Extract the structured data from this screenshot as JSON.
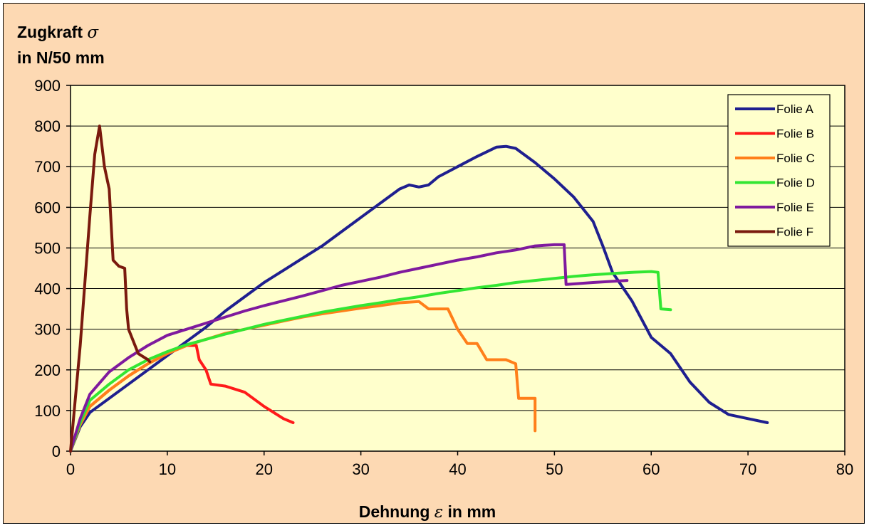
{
  "chart_data": {
    "type": "line",
    "ylabel": {
      "line1": "Zugkraft",
      "symbol": "σ",
      "line2": "in N/50 mm"
    },
    "xlabel": {
      "pre": "Dehnung",
      "symbol": "ε",
      "post": "in mm"
    },
    "xlim": [
      0,
      80
    ],
    "ylim": [
      0,
      900
    ],
    "xticks": [
      0,
      10,
      20,
      30,
      40,
      50,
      60,
      70,
      80
    ],
    "yticks": [
      0,
      100,
      200,
      300,
      400,
      500,
      600,
      700,
      800,
      900
    ],
    "grid": "horizontal",
    "legend_position": "top-right",
    "plot_background": "#ffffcc",
    "series": [
      {
        "name": "Folie A",
        "color": "#1f1f8f",
        "points": [
          [
            0,
            0
          ],
          [
            1,
            60
          ],
          [
            2,
            95
          ],
          [
            4,
            130
          ],
          [
            6,
            165
          ],
          [
            8,
            200
          ],
          [
            10,
            235
          ],
          [
            12,
            270
          ],
          [
            14,
            305
          ],
          [
            16,
            345
          ],
          [
            18,
            380
          ],
          [
            20,
            415
          ],
          [
            22,
            445
          ],
          [
            24,
            475
          ],
          [
            26,
            505
          ],
          [
            28,
            540
          ],
          [
            30,
            575
          ],
          [
            32,
            610
          ],
          [
            34,
            645
          ],
          [
            35,
            655
          ],
          [
            36,
            650
          ],
          [
            37,
            655
          ],
          [
            38,
            675
          ],
          [
            40,
            700
          ],
          [
            42,
            725
          ],
          [
            44,
            748
          ],
          [
            45,
            750
          ],
          [
            46,
            745
          ],
          [
            48,
            710
          ],
          [
            50,
            670
          ],
          [
            52,
            625
          ],
          [
            54,
            565
          ],
          [
            55,
            505
          ],
          [
            56,
            440
          ],
          [
            58,
            370
          ],
          [
            60,
            280
          ],
          [
            62,
            240
          ],
          [
            64,
            170
          ],
          [
            66,
            120
          ],
          [
            68,
            90
          ],
          [
            70,
            80
          ],
          [
            72,
            70
          ]
        ]
      },
      {
        "name": "Folie B",
        "color": "#ff1a1a",
        "points": [
          [
            0,
            0
          ],
          [
            1,
            70
          ],
          [
            2,
            110
          ],
          [
            4,
            150
          ],
          [
            6,
            185
          ],
          [
            8,
            215
          ],
          [
            10,
            240
          ],
          [
            12,
            260
          ],
          [
            13,
            260
          ],
          [
            13.3,
            225
          ],
          [
            14,
            200
          ],
          [
            14.5,
            165
          ],
          [
            16,
            160
          ],
          [
            18,
            145
          ],
          [
            20,
            110
          ],
          [
            22,
            80
          ],
          [
            23,
            70
          ]
        ]
      },
      {
        "name": "Folie C",
        "color": "#ff7f1a",
        "points": [
          [
            0,
            0
          ],
          [
            1,
            65
          ],
          [
            2,
            110
          ],
          [
            4,
            150
          ],
          [
            6,
            185
          ],
          [
            8,
            215
          ],
          [
            10,
            240
          ],
          [
            12,
            260
          ],
          [
            14,
            275
          ],
          [
            16,
            290
          ],
          [
            18,
            300
          ],
          [
            20,
            310
          ],
          [
            22,
            320
          ],
          [
            24,
            330
          ],
          [
            26,
            338
          ],
          [
            28,
            345
          ],
          [
            30,
            352
          ],
          [
            32,
            358
          ],
          [
            34,
            365
          ],
          [
            36,
            368
          ],
          [
            37,
            350
          ],
          [
            39,
            350
          ],
          [
            40,
            300
          ],
          [
            41,
            265
          ],
          [
            42,
            265
          ],
          [
            43,
            225
          ],
          [
            45,
            225
          ],
          [
            46,
            215
          ],
          [
            46.3,
            130
          ],
          [
            48,
            130
          ],
          [
            48,
            50
          ]
        ]
      },
      {
        "name": "Folie D",
        "color": "#33e633",
        "points": [
          [
            0,
            0
          ],
          [
            1,
            70
          ],
          [
            2,
            125
          ],
          [
            4,
            165
          ],
          [
            6,
            200
          ],
          [
            8,
            225
          ],
          [
            10,
            245
          ],
          [
            12,
            262
          ],
          [
            14,
            275
          ],
          [
            16,
            288
          ],
          [
            18,
            300
          ],
          [
            20,
            312
          ],
          [
            22,
            322
          ],
          [
            24,
            332
          ],
          [
            26,
            342
          ],
          [
            28,
            350
          ],
          [
            30,
            358
          ],
          [
            32,
            365
          ],
          [
            34,
            373
          ],
          [
            36,
            380
          ],
          [
            38,
            388
          ],
          [
            40,
            395
          ],
          [
            42,
            402
          ],
          [
            44,
            408
          ],
          [
            46,
            415
          ],
          [
            48,
            420
          ],
          [
            50,
            425
          ],
          [
            52,
            430
          ],
          [
            54,
            434
          ],
          [
            56,
            437
          ],
          [
            58,
            440
          ],
          [
            60,
            442
          ],
          [
            60.7,
            440
          ],
          [
            61,
            350
          ],
          [
            62,
            348
          ]
        ]
      },
      {
        "name": "Folie E",
        "color": "#7f1a9e",
        "points": [
          [
            0,
            0
          ],
          [
            1,
            80
          ],
          [
            2,
            140
          ],
          [
            4,
            195
          ],
          [
            6,
            230
          ],
          [
            8,
            260
          ],
          [
            10,
            285
          ],
          [
            12,
            300
          ],
          [
            14,
            315
          ],
          [
            16,
            330
          ],
          [
            18,
            345
          ],
          [
            20,
            358
          ],
          [
            22,
            370
          ],
          [
            24,
            382
          ],
          [
            26,
            395
          ],
          [
            28,
            408
          ],
          [
            30,
            418
          ],
          [
            32,
            428
          ],
          [
            34,
            440
          ],
          [
            36,
            450
          ],
          [
            38,
            460
          ],
          [
            40,
            470
          ],
          [
            42,
            478
          ],
          [
            44,
            488
          ],
          [
            46,
            495
          ],
          [
            48,
            505
          ],
          [
            50,
            508
          ],
          [
            51,
            508
          ],
          [
            51.2,
            410
          ],
          [
            54,
            415
          ],
          [
            57.5,
            420
          ]
        ]
      },
      {
        "name": "Folie F",
        "color": "#7a1a0e",
        "points": [
          [
            0,
            0
          ],
          [
            0.5,
            130
          ],
          [
            1,
            260
          ],
          [
            1.5,
            420
          ],
          [
            2,
            580
          ],
          [
            2.5,
            730
          ],
          [
            3,
            800
          ],
          [
            3.5,
            700
          ],
          [
            4,
            645
          ],
          [
            4.4,
            470
          ],
          [
            5,
            455
          ],
          [
            5.6,
            450
          ],
          [
            5.8,
            350
          ],
          [
            6,
            300
          ],
          [
            7,
            240
          ],
          [
            8,
            225
          ],
          [
            8.2,
            220
          ]
        ]
      }
    ]
  }
}
